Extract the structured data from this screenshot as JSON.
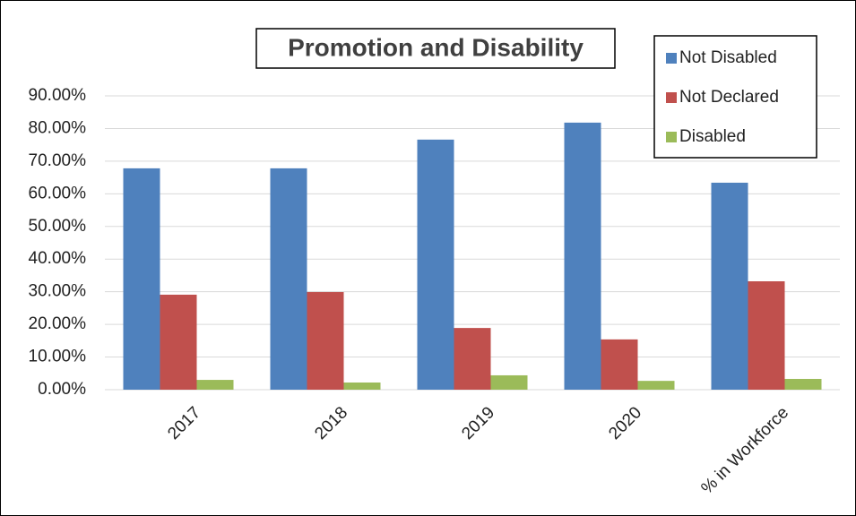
{
  "chart_data": {
    "type": "bar",
    "title": "Promotion and Disability",
    "categories": [
      "2017",
      "2018",
      "2019",
      "2020",
      "% in Workforce"
    ],
    "series": [
      {
        "name": "Not Disabled",
        "color": "#4f81bd",
        "values": [
          67.8,
          67.8,
          76.6,
          81.8,
          63.4
        ]
      },
      {
        "name": "Not Declared",
        "color": "#c0504d",
        "values": [
          29.1,
          29.9,
          18.9,
          15.4,
          33.2
        ]
      },
      {
        "name": "Disabled",
        "color": "#9bbb59",
        "values": [
          3.0,
          2.2,
          4.4,
          2.7,
          3.3
        ]
      }
    ],
    "ylim": [
      0,
      90
    ],
    "yticks": [
      {
        "value": 0,
        "label": "0.00%"
      },
      {
        "value": 10,
        "label": "10.00%"
      },
      {
        "value": 20,
        "label": "20.00%"
      },
      {
        "value": 30,
        "label": "30.00%"
      },
      {
        "value": 40,
        "label": "40.00%"
      },
      {
        "value": 50,
        "label": "50.00%"
      },
      {
        "value": 60,
        "label": "60.00%"
      },
      {
        "value": 70,
        "label": "70.00%"
      },
      {
        "value": 80,
        "label": "80.00%"
      },
      {
        "value": 90,
        "label": "90.00%"
      }
    ],
    "grid": true,
    "legend": "top-right"
  }
}
